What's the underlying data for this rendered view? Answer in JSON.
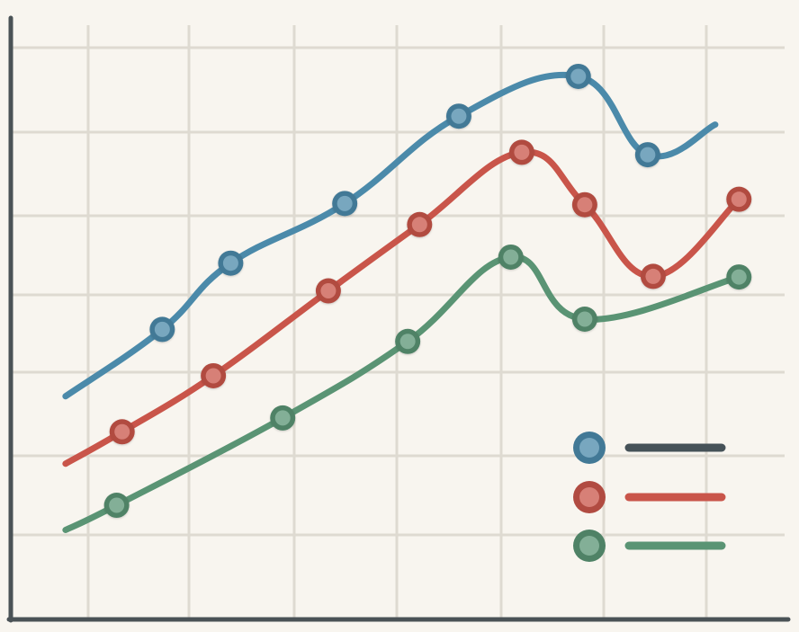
{
  "chart_data": {
    "type": "line",
    "title": "",
    "xlabel": "",
    "ylabel": "",
    "grid": true,
    "legend_position": "bottom-right",
    "ylim": [
      0,
      100
    ],
    "series": [
      {
        "name": "blue",
        "color": "#4b8aaa",
        "x": [
          0,
          1.06,
          1.81,
          3.06,
          4.31,
          5.62,
          6.38,
          7.12
        ],
        "y": [
          37.2,
          48.3,
          59.3,
          69.2,
          83.7,
          90.3,
          77.3,
          82.3
        ],
        "markers": [
          false,
          true,
          true,
          true,
          true,
          true,
          true,
          false
        ]
      },
      {
        "name": "red",
        "color": "#c9554a",
        "x": [
          0,
          0.62,
          1.62,
          2.88,
          3.88,
          5.0,
          5.69,
          6.44,
          7.38
        ],
        "y": [
          26.0,
          31.3,
          40.6,
          54.7,
          65.7,
          77.7,
          69.0,
          57.1,
          69.9
        ],
        "markers": [
          false,
          true,
          true,
          true,
          true,
          true,
          true,
          true,
          true
        ]
      },
      {
        "name": "green",
        "color": "#5a9474",
        "x": [
          0,
          0.56,
          2.38,
          3.75,
          4.88,
          5.69,
          7.38
        ],
        "y": [
          15.0,
          19.1,
          33.6,
          46.3,
          60.3,
          50.0,
          57.0
        ],
        "markers": [
          false,
          true,
          true,
          true,
          true,
          true,
          true
        ]
      }
    ]
  }
}
